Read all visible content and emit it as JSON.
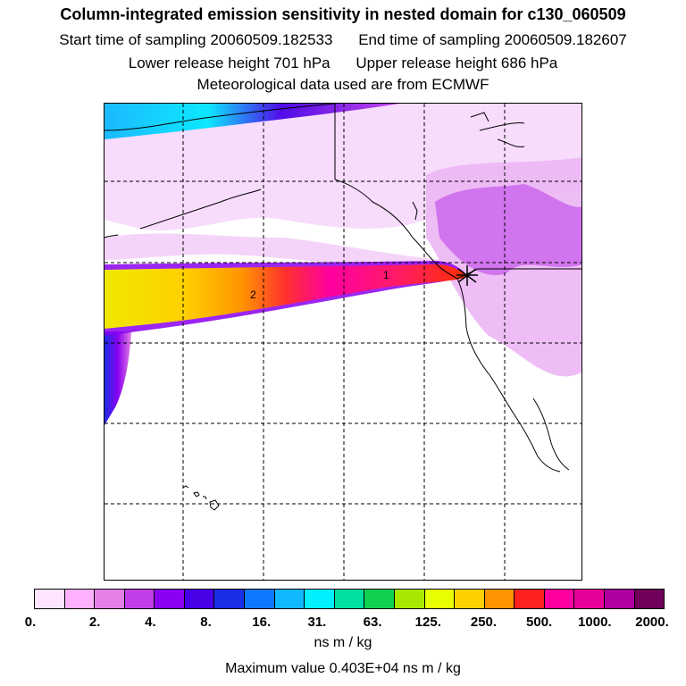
{
  "header": {
    "title": "Column-integrated emission sensitivity in nested domain for c130_060509",
    "start_label": "Start time of sampling 20060509.182533",
    "end_label": "End time of sampling 20060509.182607",
    "lower_label": "Lower release height  701 hPa",
    "upper_label": "Upper release height  686 hPa",
    "met_label": "Meteorological data used are from ECMWF"
  },
  "map": {
    "contour_labels": [
      "1",
      "2"
    ],
    "release_marker": "release-point-star"
  },
  "colorbar": {
    "colors": [
      "#ffe4ff",
      "#ffb0ff",
      "#e37fe6",
      "#c23ee8",
      "#8a00f0",
      "#4800e6",
      "#1a2ee6",
      "#0f78ff",
      "#10b8ff",
      "#00f0ff",
      "#00e0a0",
      "#10d050",
      "#a8e800",
      "#e8ff00",
      "#ffd000",
      "#ff9400",
      "#ff2020",
      "#ff00a0",
      "#e8009a",
      "#b000a0",
      "#70005a"
    ],
    "tick_labels": [
      "0.",
      "2.",
      "4.",
      "8.",
      "16.",
      "31.",
      "63.",
      "125.",
      "250.",
      "500.",
      "1000.",
      "2000."
    ],
    "units": "ns m / kg"
  },
  "footer": {
    "max_value": "Maximum value  0.403E+04 ns m / kg"
  }
}
